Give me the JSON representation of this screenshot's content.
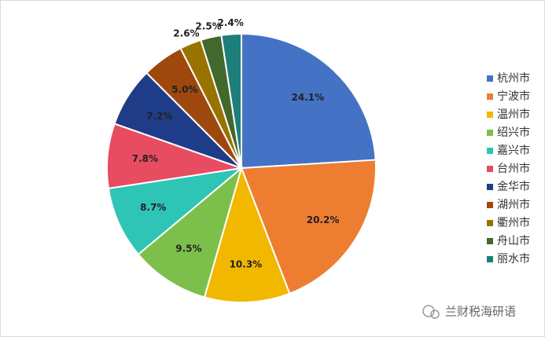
{
  "chart_data": {
    "type": "pie",
    "categories": [
      "杭州市",
      "宁波市",
      "温州市",
      "绍兴市",
      "嘉兴市",
      "台州市",
      "金华市",
      "湖州市",
      "衢州市",
      "舟山市",
      "丽水市"
    ],
    "values": [
      24.1,
      20.2,
      10.3,
      9.5,
      8.7,
      7.8,
      7.2,
      5.0,
      2.6,
      2.5,
      2.4
    ],
    "value_labels": [
      "24.1%",
      "20.2%",
      "10.3%",
      "9.5%",
      "8.7%",
      "7.8%",
      "7.2%",
      "5.0%",
      "2.6%",
      "2.5%",
      "2.4%"
    ],
    "colors": [
      "#4472c4",
      "#ed7d31",
      "#f2b800",
      "#7cc04b",
      "#2ec4b6",
      "#e84c61",
      "#1f3c88",
      "#9e480e",
      "#997300",
      "#43682b",
      "#1e7f7a"
    ],
    "legend": "right"
  },
  "watermark": "兰财税海研语"
}
